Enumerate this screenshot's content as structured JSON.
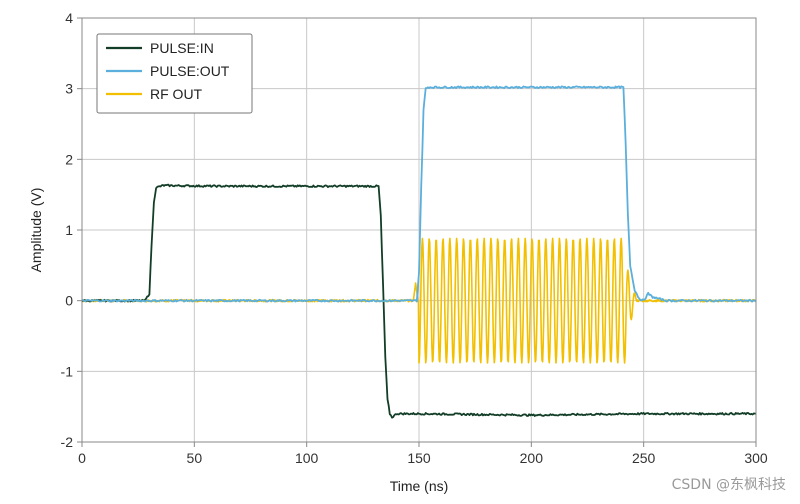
{
  "chart_data": {
    "type": "line",
    "xlabel": "Time (ns)",
    "ylabel": "Amplitude (V)",
    "xlim": [
      0,
      300
    ],
    "ylim": [
      -2,
      4
    ],
    "x_ticks": [
      0,
      50,
      100,
      150,
      200,
      250,
      300
    ],
    "y_ticks": [
      -2,
      -1,
      0,
      1,
      2,
      3,
      4
    ],
    "grid": true,
    "legend_position": "top-left",
    "series": [
      {
        "name": "PULSE:IN",
        "color": "#123d26",
        "x": [
          0,
          28,
          30,
          31,
          32,
          33,
          36,
          60,
          100,
          132,
          133,
          134,
          135,
          136,
          137,
          138,
          140,
          150,
          200,
          250,
          300
        ],
        "y": [
          0,
          0,
          0.1,
          0.8,
          1.4,
          1.6,
          1.63,
          1.62,
          1.62,
          1.62,
          1.2,
          0.2,
          -0.8,
          -1.4,
          -1.6,
          -1.65,
          -1.6,
          -1.6,
          -1.62,
          -1.6,
          -1.6
        ]
      },
      {
        "name": "PULSE:OUT",
        "color": "#5aafdc",
        "x": [
          0,
          149,
          150,
          151,
          152,
          153,
          154,
          200,
          241,
          242,
          243,
          244,
          246,
          248,
          250,
          252,
          254,
          260,
          300
        ],
        "y": [
          0,
          0,
          0.4,
          1.6,
          2.7,
          3.0,
          3.02,
          3.02,
          3.02,
          2.2,
          1.2,
          0.5,
          0.15,
          0.03,
          0,
          0.1,
          0.05,
          0,
          0
        ]
      },
      {
        "name": "RF OUT",
        "color": "#f2c000",
        "waveform": {
          "baseline_segments": [
            [
              0,
              148
            ],
            [
              247,
              300
            ]
          ],
          "burst_start": 150,
          "burst_end": 242,
          "burst_amplitude": 0.9,
          "burst_period": 3.05,
          "pre_spike": {
            "x": 148.5,
            "y": 0.25
          }
        }
      }
    ]
  },
  "watermark": "CSDN @东枫科技"
}
